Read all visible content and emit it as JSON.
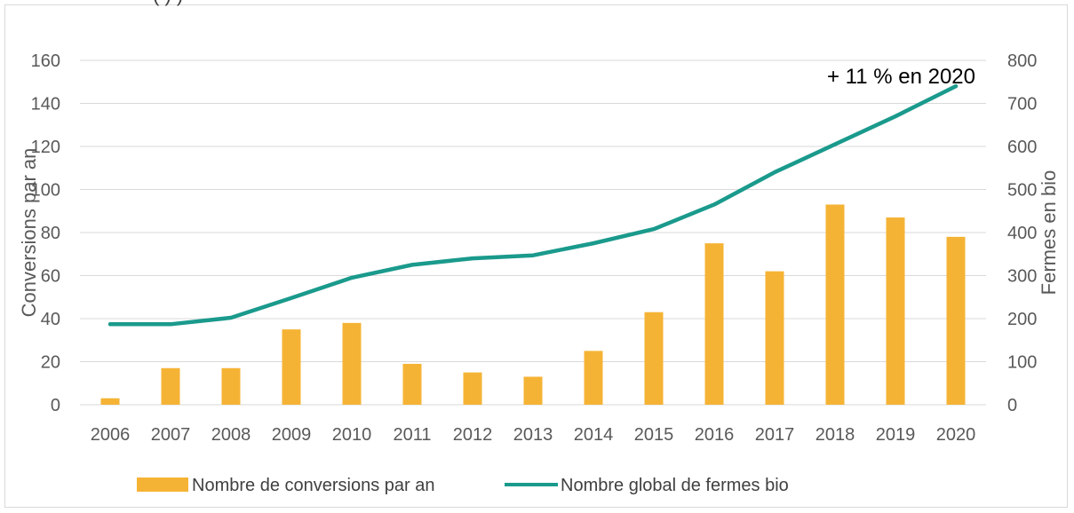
{
  "chart_data": {
    "type": "bar+line",
    "title": "",
    "title_partial": "(          )                                                  )",
    "categories": [
      "2006",
      "2007",
      "2008",
      "2009",
      "2010",
      "2011",
      "2012",
      "2013",
      "2014",
      "2015",
      "2016",
      "2017",
      "2018",
      "2019",
      "2020"
    ],
    "series": [
      {
        "name": "Nombre de conversions par an",
        "type": "bar",
        "axis": "left",
        "color": "#f5b335",
        "values": [
          3,
          17,
          17,
          35,
          38,
          19,
          15,
          13,
          25,
          43,
          75,
          62,
          93,
          87,
          78
        ]
      },
      {
        "name": "Nombre global de fermes bio",
        "type": "line",
        "axis": "right",
        "color": "#1a9a8c",
        "values": [
          187,
          187,
          202,
          248,
          295,
          325,
          340,
          347,
          375,
          408,
          465,
          540,
          605,
          670,
          740
        ]
      }
    ],
    "left_axis": {
      "label": "Conversions par an",
      "min": 0,
      "max": 160,
      "ticks": [
        0,
        20,
        40,
        60,
        80,
        100,
        120,
        140,
        160
      ]
    },
    "right_axis": {
      "label": "Fermes en bio",
      "min": 0,
      "max": 800,
      "ticks": [
        0,
        100,
        200,
        300,
        400,
        500,
        600,
        700,
        800
      ]
    },
    "annotation": "+ 11 % en 2020",
    "grid": true,
    "legend_position": "bottom"
  }
}
